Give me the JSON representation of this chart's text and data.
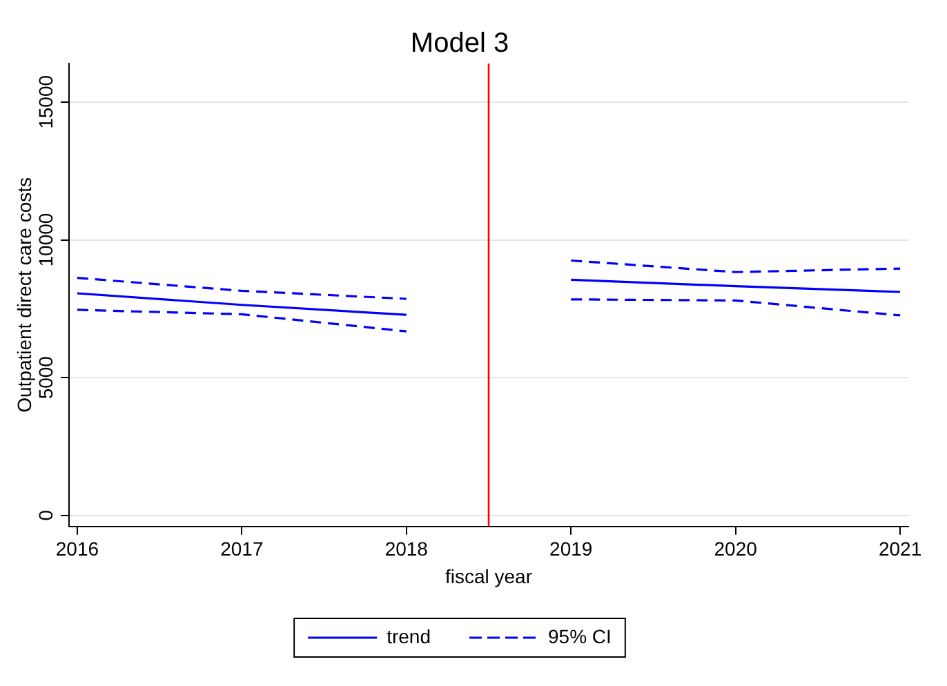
{
  "chart_data": {
    "type": "line",
    "title": "Model 3",
    "xlabel": "fiscal year",
    "ylabel": "Outpatient direct care costs",
    "x": [
      2016,
      2017,
      2018,
      2018.5,
      2019,
      2020,
      2021
    ],
    "series": [
      {
        "name": "trend",
        "color": "#0000ff",
        "line_style": "solid",
        "values": [
          8060,
          7640,
          7280,
          null,
          8550,
          8320,
          8110
        ]
      },
      {
        "name": "95% CI",
        "color": "#0000ff",
        "line_style": "dashed",
        "values": [
          8620,
          8150,
          7860,
          null,
          9250,
          8830,
          8960
        ]
      },
      {
        "color": "#0000ff",
        "line_style": "dashed",
        "values": [
          7460,
          7300,
          6680,
          null,
          7840,
          7800,
          7260
        ]
      }
    ],
    "xlim": [
      2015.95,
      2021.05
    ],
    "xticks": [
      2016,
      2017,
      2018,
      2019,
      2020,
      2021
    ],
    "ylim": [
      -400,
      16400
    ],
    "yticks": [
      0,
      5000,
      10000,
      15000
    ],
    "ref_lines": [
      {
        "axis": "x",
        "value": 2018.5,
        "color": "#ff0000"
      }
    ],
    "grid": "y",
    "legend": "bottom"
  }
}
